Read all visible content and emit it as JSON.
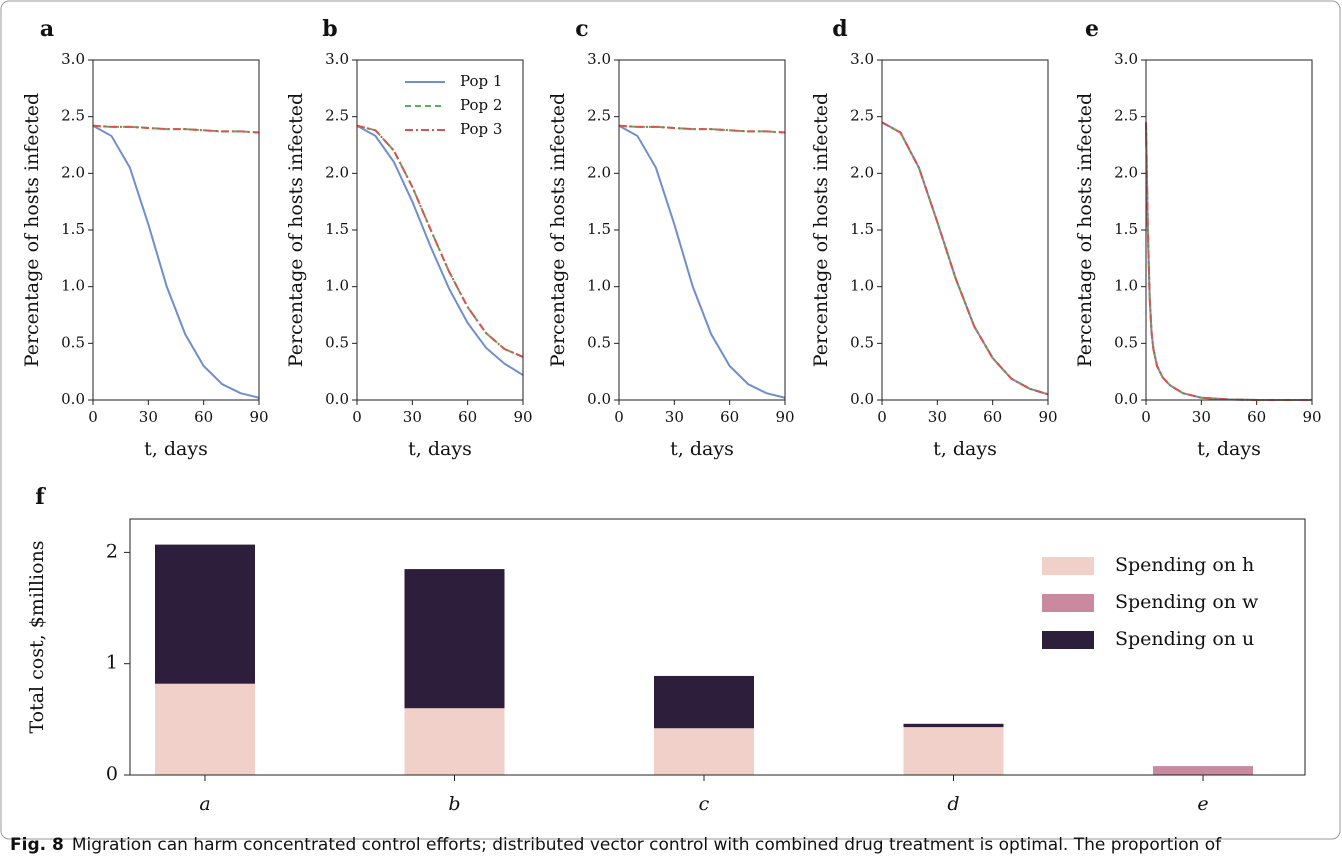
{
  "chart_data": [
    {
      "type": "line",
      "panel": "a",
      "xlabel": "t, days",
      "ylabel": "Percentage of hosts infected",
      "x": [
        0,
        10,
        20,
        30,
        40,
        50,
        60,
        70,
        80,
        90
      ],
      "xlim": [
        0,
        90
      ],
      "xticks": [
        0,
        30,
        60,
        90
      ],
      "ylim": [
        0,
        3
      ],
      "yticks": [
        {
          "value": 0,
          "label": "0.0"
        },
        {
          "value": 0.5,
          "label": "0.5"
        },
        {
          "value": 1,
          "label": "1.0"
        },
        {
          "value": 1.5,
          "label": "1.5"
        },
        {
          "value": 2,
          "label": "2.0"
        },
        {
          "value": 2.5,
          "label": "2.5"
        },
        {
          "value": 3,
          "label": "3.0"
        }
      ],
      "series": [
        {
          "color": "#6f8fcc",
          "style": "solid",
          "values": [
            2.42,
            2.33,
            2.05,
            1.55,
            1.0,
            0.58,
            0.3,
            0.14,
            0.06,
            0.02
          ]
        },
        {
          "color": "#5aaf5a",
          "style": "dashed",
          "values": [
            2.42,
            2.41,
            2.41,
            2.4,
            2.39,
            2.39,
            2.38,
            2.37,
            2.37,
            2.36
          ]
        },
        {
          "color": "#d9534f",
          "style": "dashdot",
          "values": [
            2.42,
            2.41,
            2.41,
            2.4,
            2.39,
            2.39,
            2.38,
            2.37,
            2.37,
            2.36
          ]
        }
      ]
    },
    {
      "type": "line",
      "panel": "b",
      "xlabel": "t, days",
      "ylabel": "Percentage of hosts infected",
      "legend": true,
      "x": [
        0,
        10,
        20,
        30,
        40,
        50,
        60,
        70,
        80,
        90
      ],
      "xlim": [
        0,
        90
      ],
      "xticks": [
        0,
        30,
        60,
        90
      ],
      "ylim": [
        0,
        3
      ],
      "yticks": [
        {
          "value": 0,
          "label": "0.0"
        },
        {
          "value": 0.5,
          "label": "0.5"
        },
        {
          "value": 1,
          "label": "1.0"
        },
        {
          "value": 1.5,
          "label": "1.5"
        },
        {
          "value": 2,
          "label": "2.0"
        },
        {
          "value": 2.5,
          "label": "2.5"
        },
        {
          "value": 3,
          "label": "3.0"
        }
      ],
      "series": [
        {
          "name": "Pop 1",
          "color": "#6f8fcc",
          "style": "solid",
          "values": [
            2.42,
            2.33,
            2.1,
            1.75,
            1.35,
            0.98,
            0.68,
            0.46,
            0.32,
            0.22
          ]
        },
        {
          "name": "Pop 2",
          "color": "#5aaf5a",
          "style": "dashed",
          "values": [
            2.42,
            2.38,
            2.2,
            1.88,
            1.5,
            1.13,
            0.82,
            0.59,
            0.45,
            0.38
          ]
        },
        {
          "name": "Pop 3",
          "color": "#d9534f",
          "style": "dashdot",
          "values": [
            2.42,
            2.38,
            2.2,
            1.88,
            1.5,
            1.13,
            0.82,
            0.59,
            0.45,
            0.38
          ]
        }
      ]
    },
    {
      "type": "line",
      "panel": "c",
      "xlabel": "t, days",
      "ylabel": "Percentage of hosts infected",
      "x": [
        0,
        10,
        20,
        30,
        40,
        50,
        60,
        70,
        80,
        90
      ],
      "xlim": [
        0,
        90
      ],
      "xticks": [
        0,
        30,
        60,
        90
      ],
      "ylim": [
        0,
        3
      ],
      "yticks": [
        {
          "value": 0,
          "label": "0.0"
        },
        {
          "value": 0.5,
          "label": "0.5"
        },
        {
          "value": 1,
          "label": "1.0"
        },
        {
          "value": 1.5,
          "label": "1.5"
        },
        {
          "value": 2,
          "label": "2.0"
        },
        {
          "value": 2.5,
          "label": "2.5"
        },
        {
          "value": 3,
          "label": "3.0"
        }
      ],
      "series": [
        {
          "color": "#6f8fcc",
          "style": "solid",
          "values": [
            2.42,
            2.33,
            2.05,
            1.55,
            1.0,
            0.58,
            0.3,
            0.14,
            0.06,
            0.02
          ]
        },
        {
          "color": "#5aaf5a",
          "style": "dashed",
          "values": [
            2.42,
            2.41,
            2.41,
            2.4,
            2.39,
            2.39,
            2.38,
            2.37,
            2.37,
            2.36
          ]
        },
        {
          "color": "#d9534f",
          "style": "dashdot",
          "values": [
            2.42,
            2.41,
            2.41,
            2.4,
            2.39,
            2.39,
            2.38,
            2.37,
            2.37,
            2.36
          ]
        }
      ]
    },
    {
      "type": "line",
      "panel": "d",
      "xlabel": "t, days",
      "ylabel": "Percentage of hosts infected",
      "x": [
        0,
        10,
        20,
        30,
        40,
        50,
        60,
        70,
        80,
        90
      ],
      "xlim": [
        0,
        90
      ],
      "xticks": [
        0,
        30,
        60,
        90
      ],
      "ylim": [
        0,
        3
      ],
      "yticks": [
        {
          "value": 0,
          "label": "0.0"
        },
        {
          "value": 0.5,
          "label": "0.5"
        },
        {
          "value": 1,
          "label": "1.0"
        },
        {
          "value": 1.5,
          "label": "1.5"
        },
        {
          "value": 2,
          "label": "2.0"
        },
        {
          "value": 2.5,
          "label": "2.5"
        },
        {
          "value": 3,
          "label": "3.0"
        }
      ],
      "series": [
        {
          "color": "#6f8fcc",
          "style": "solid",
          "values": [
            2.45,
            2.36,
            2.05,
            1.57,
            1.07,
            0.65,
            0.37,
            0.19,
            0.1,
            0.05
          ]
        },
        {
          "color": "#5aaf5a",
          "style": "dashed",
          "values": [
            2.45,
            2.36,
            2.05,
            1.57,
            1.07,
            0.65,
            0.37,
            0.19,
            0.1,
            0.05
          ]
        },
        {
          "color": "#d9534f",
          "style": "dashdot",
          "values": [
            2.45,
            2.36,
            2.05,
            1.57,
            1.07,
            0.65,
            0.37,
            0.19,
            0.1,
            0.05
          ]
        }
      ]
    },
    {
      "type": "line",
      "panel": "e",
      "xlabel": "t, days",
      "ylabel": "Percentage of hosts infected",
      "x": [
        0,
        1,
        2,
        3,
        4,
        6,
        9,
        13,
        20,
        30,
        45,
        60,
        90
      ],
      "xlim": [
        0,
        90
      ],
      "xticks": [
        0,
        30,
        60,
        90
      ],
      "ylim": [
        0,
        3
      ],
      "yticks": [
        {
          "value": 0,
          "label": "0.0"
        },
        {
          "value": 0.5,
          "label": "0.5"
        },
        {
          "value": 1,
          "label": "1.0"
        },
        {
          "value": 1.5,
          "label": "1.5"
        },
        {
          "value": 2,
          "label": "2.0"
        },
        {
          "value": 2.5,
          "label": "2.5"
        },
        {
          "value": 3,
          "label": "3.0"
        }
      ],
      "series": [
        {
          "color": "#6f8fcc",
          "style": "solid",
          "values": [
            2.45,
            1.5,
            0.9,
            0.6,
            0.45,
            0.3,
            0.2,
            0.13,
            0.06,
            0.02,
            0.005,
            0,
            0
          ]
        },
        {
          "color": "#5aaf5a",
          "style": "dashed",
          "values": [
            2.45,
            1.5,
            0.9,
            0.6,
            0.45,
            0.3,
            0.2,
            0.13,
            0.06,
            0.02,
            0.005,
            0,
            0
          ]
        },
        {
          "color": "#d9534f",
          "style": "dashdot",
          "values": [
            2.45,
            1.5,
            0.9,
            0.6,
            0.45,
            0.3,
            0.2,
            0.13,
            0.06,
            0.02,
            0.005,
            0,
            0
          ]
        }
      ]
    },
    {
      "type": "stacked_bar",
      "panel": "f",
      "ylabel": "Total cost, $millions",
      "categories": [
        "a",
        "b",
        "c",
        "d",
        "e"
      ],
      "ylim": [
        0,
        2.3
      ],
      "yticks": [
        0,
        1,
        2
      ],
      "series": [
        {
          "name": "Spending on h",
          "color": "#f0d0c8",
          "values": [
            0.82,
            0.6,
            0.42,
            0.43,
            0
          ]
        },
        {
          "name": "Spending on w",
          "color": "#c98aa0",
          "values": [
            0,
            0,
            0,
            0,
            0.08
          ]
        },
        {
          "name": "Spending on u",
          "color": "#2d1e3c",
          "values": [
            1.25,
            1.25,
            0.47,
            0.03,
            0
          ]
        }
      ]
    }
  ],
  "caption_label": "Fig. 8",
  "caption": "Migration can harm concentrated control efforts; distributed vector control with combined drug treatment is optimal. The proportion of"
}
